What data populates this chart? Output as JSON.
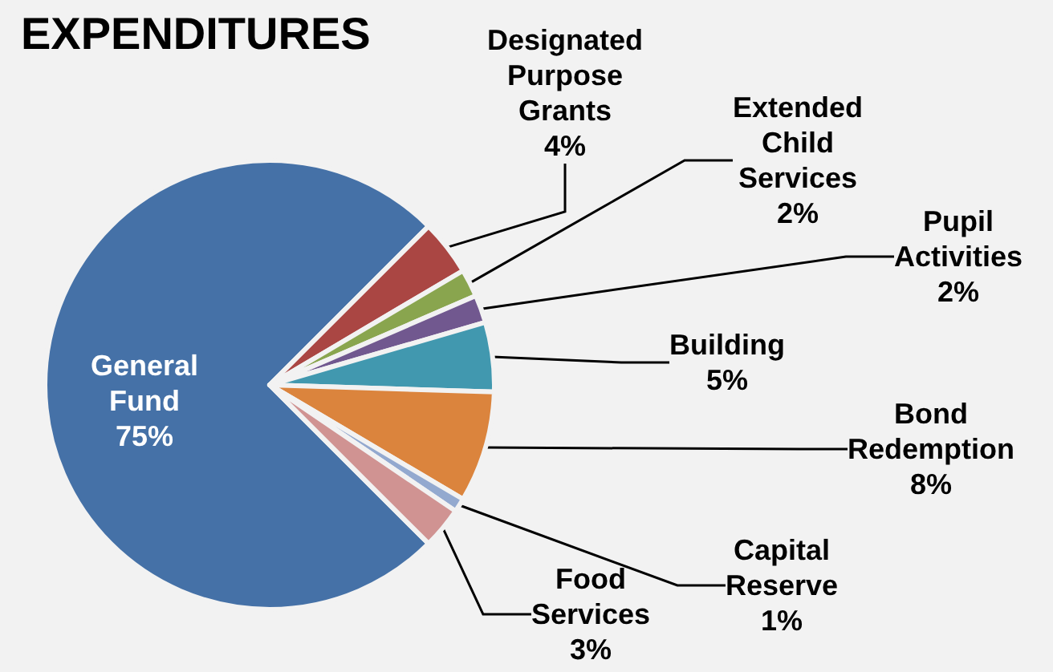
{
  "chart_data": {
    "type": "pie",
    "title": "EXPENDITURES",
    "categories": [
      "General Fund",
      "Designated Purpose Grants",
      "Extended Child Services",
      "Pupil Activities",
      "Building",
      "Bond Redemption",
      "Capital Reserve",
      "Food Services"
    ],
    "values": [
      75,
      4,
      2,
      2,
      5,
      8,
      1,
      3
    ],
    "value_labels": [
      "75%",
      "4%",
      "2%",
      "2%",
      "5%",
      "8%",
      "1%",
      "3%"
    ],
    "colors": [
      "#4571a7",
      "#aa4643",
      "#89a54e",
      "#71588f",
      "#4198af",
      "#db843d",
      "#93a9cf",
      "#d09392"
    ]
  }
}
